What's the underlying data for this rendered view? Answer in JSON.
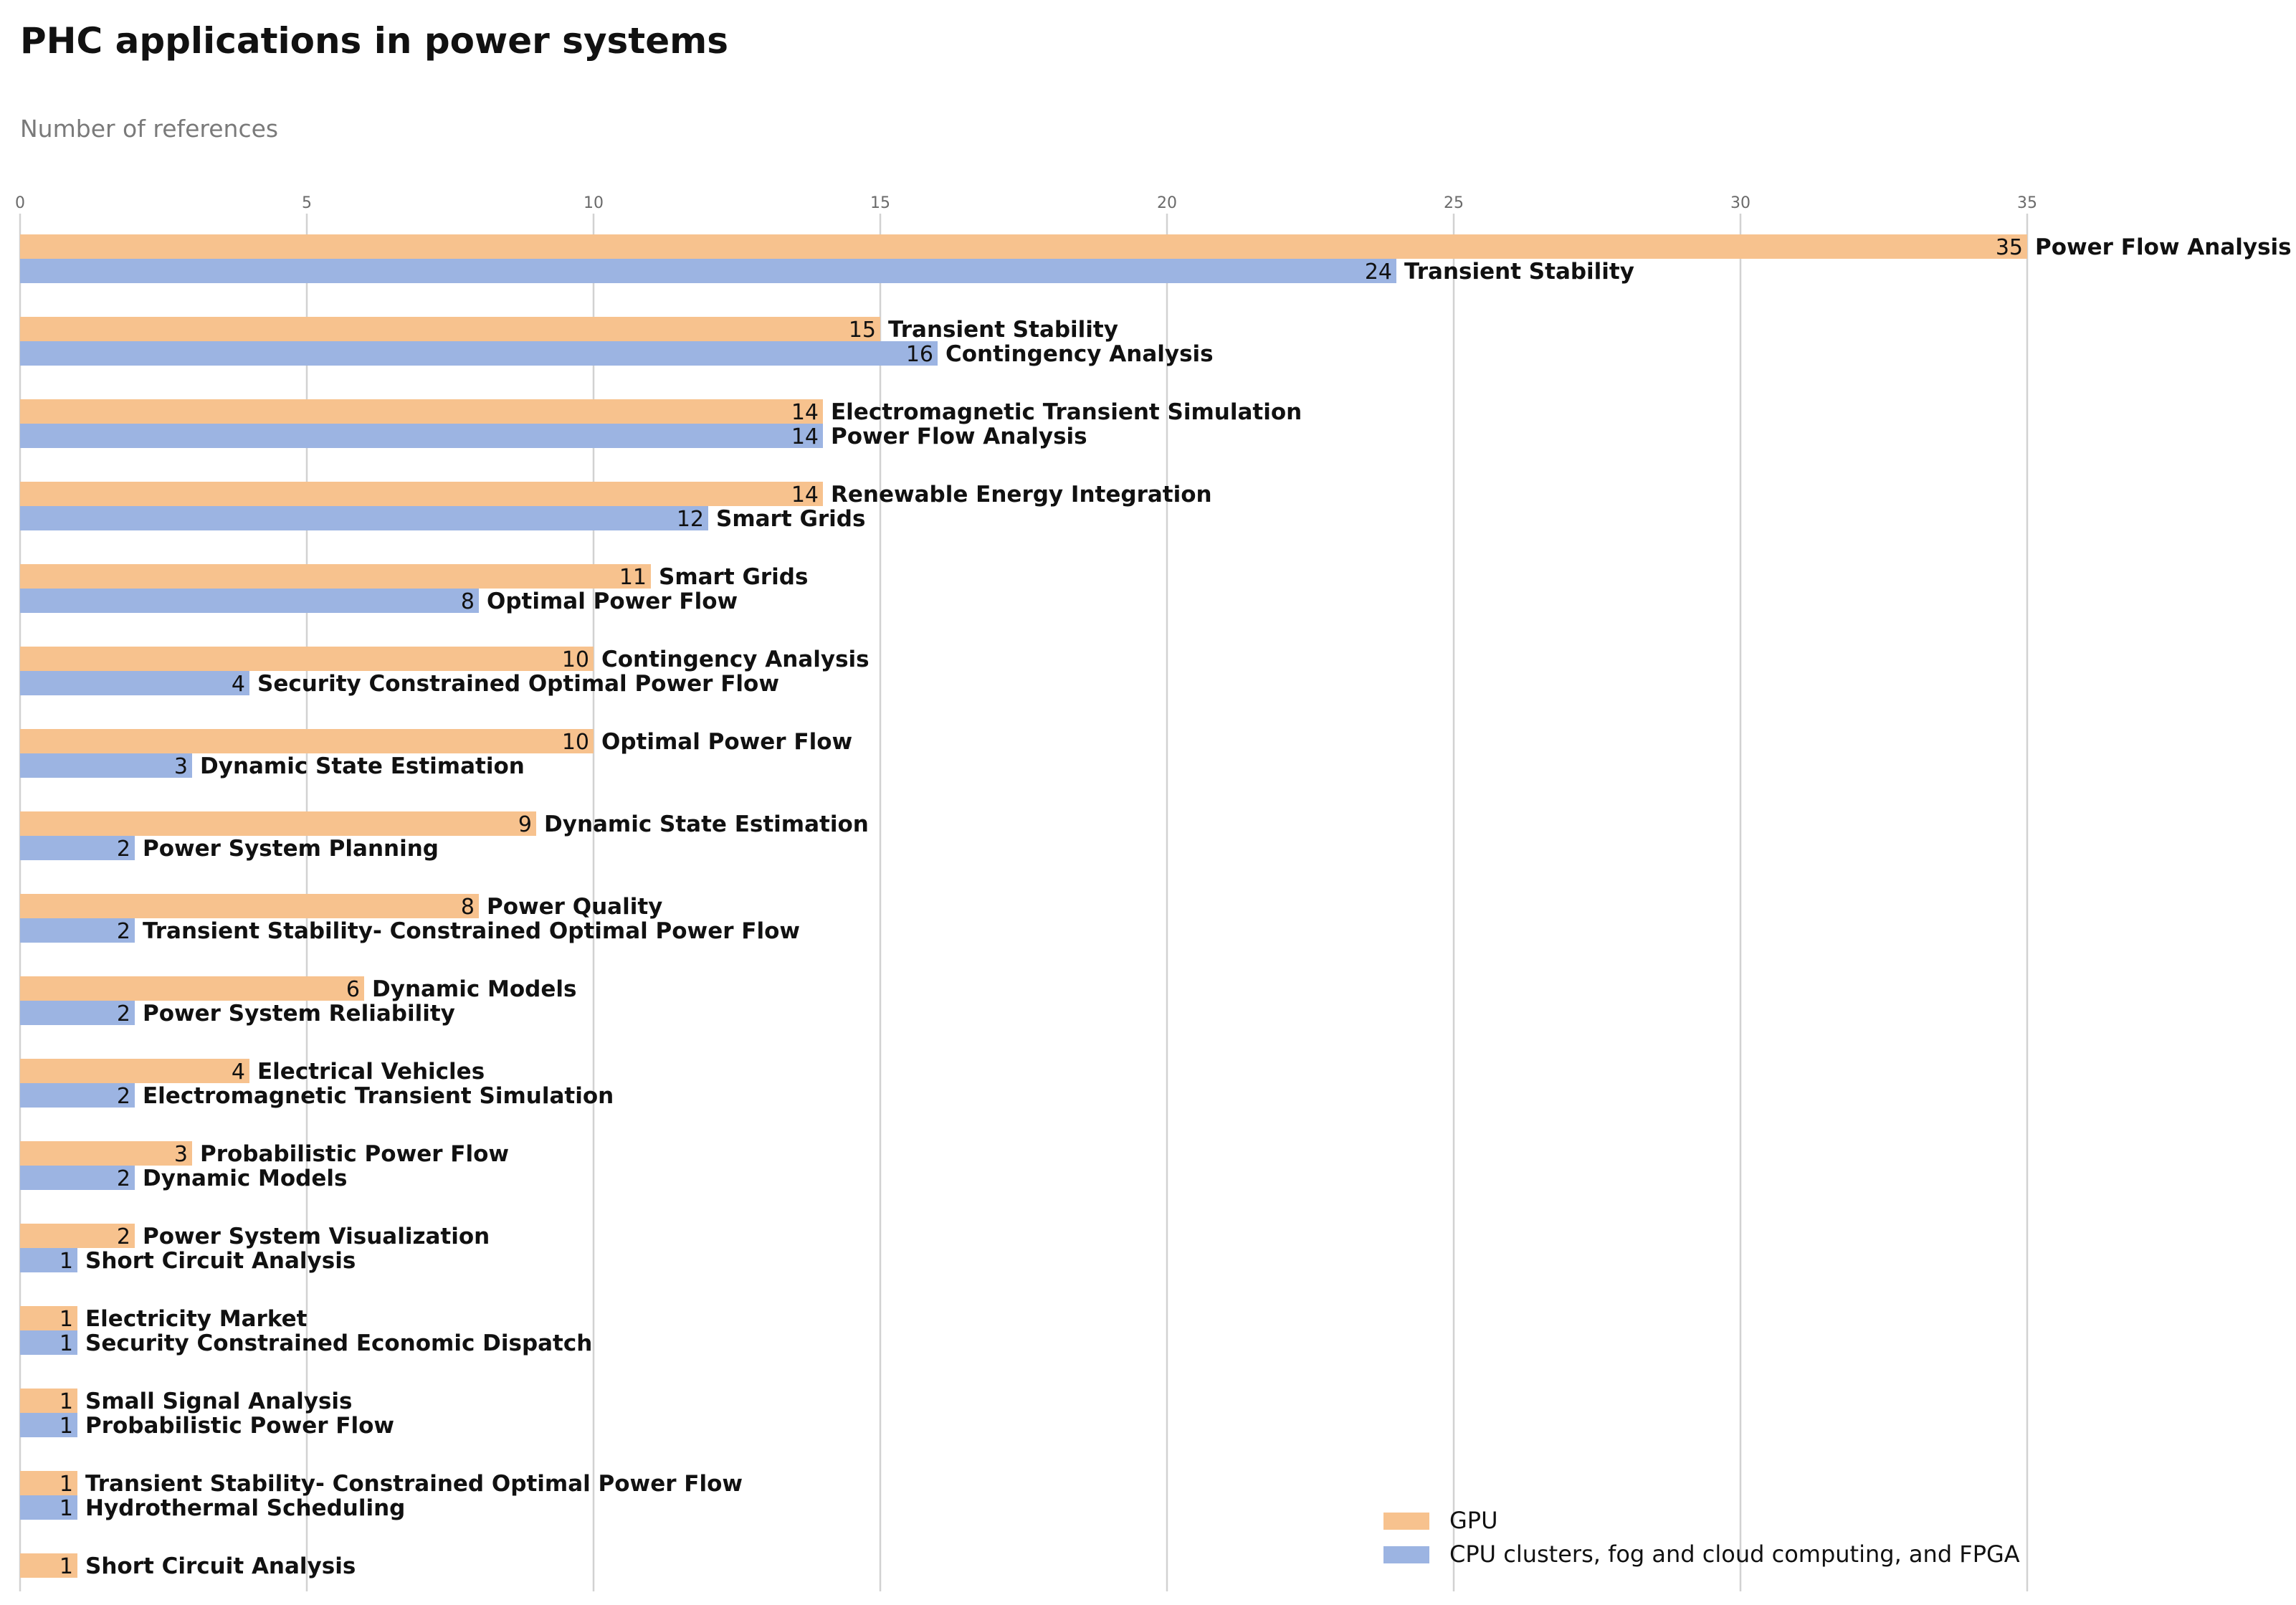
{
  "chart_data": {
    "type": "bar",
    "orientation": "horizontal",
    "title": "PHC applications in power systems",
    "xlabel": "Number of references",
    "xlim": [
      0,
      38
    ],
    "xticks": [
      0,
      5,
      10,
      15,
      20,
      25,
      30,
      35
    ],
    "grid": "vertical",
    "legend_position": "bottom-right",
    "series": [
      {
        "name": "GPU",
        "color": "#f7c28e",
        "categories": [
          "Power Flow Analysis",
          "Transient Stability",
          "Electromagnetic Transient Simulation",
          "Renewable Energy Integration",
          "Smart Grids",
          "Contingency Analysis",
          "Optimal Power Flow",
          "Dynamic State Estimation",
          "Power Quality",
          "Dynamic Models",
          "Electrical Vehicles",
          "Probabilistic Power Flow",
          "Power System Visualization",
          "Electricity Market",
          "Small Signal Analysis",
          "Transient Stability- Constrained Optimal Power Flow",
          "Short Circuit Analysis"
        ],
        "values": [
          35,
          15,
          14,
          14,
          11,
          10,
          10,
          9,
          8,
          6,
          4,
          3,
          2,
          1,
          1,
          1,
          1
        ]
      },
      {
        "name": "CPU clusters, fog and cloud computing, and FPGA",
        "color": "#9cb4e2",
        "categories": [
          "Transient Stability",
          "Contingency Analysis",
          "Power Flow Analysis",
          "Smart Grids",
          "Optimal Power Flow",
          "Security Constrained Optimal Power Flow",
          "Dynamic State Estimation",
          "Power System Planning",
          "Transient Stability- Constrained Optimal Power Flow",
          "Power System Reliability",
          "Electromagnetic Transient Simulation",
          "Dynamic Models",
          "Short Circuit Analysis",
          "Security Constrained Economic Dispatch",
          "Probabilistic Power Flow",
          "Hydrothermal Scheduling"
        ],
        "values": [
          24,
          16,
          14,
          12,
          8,
          4,
          3,
          2,
          2,
          2,
          2,
          2,
          1,
          1,
          1,
          1
        ]
      }
    ]
  }
}
